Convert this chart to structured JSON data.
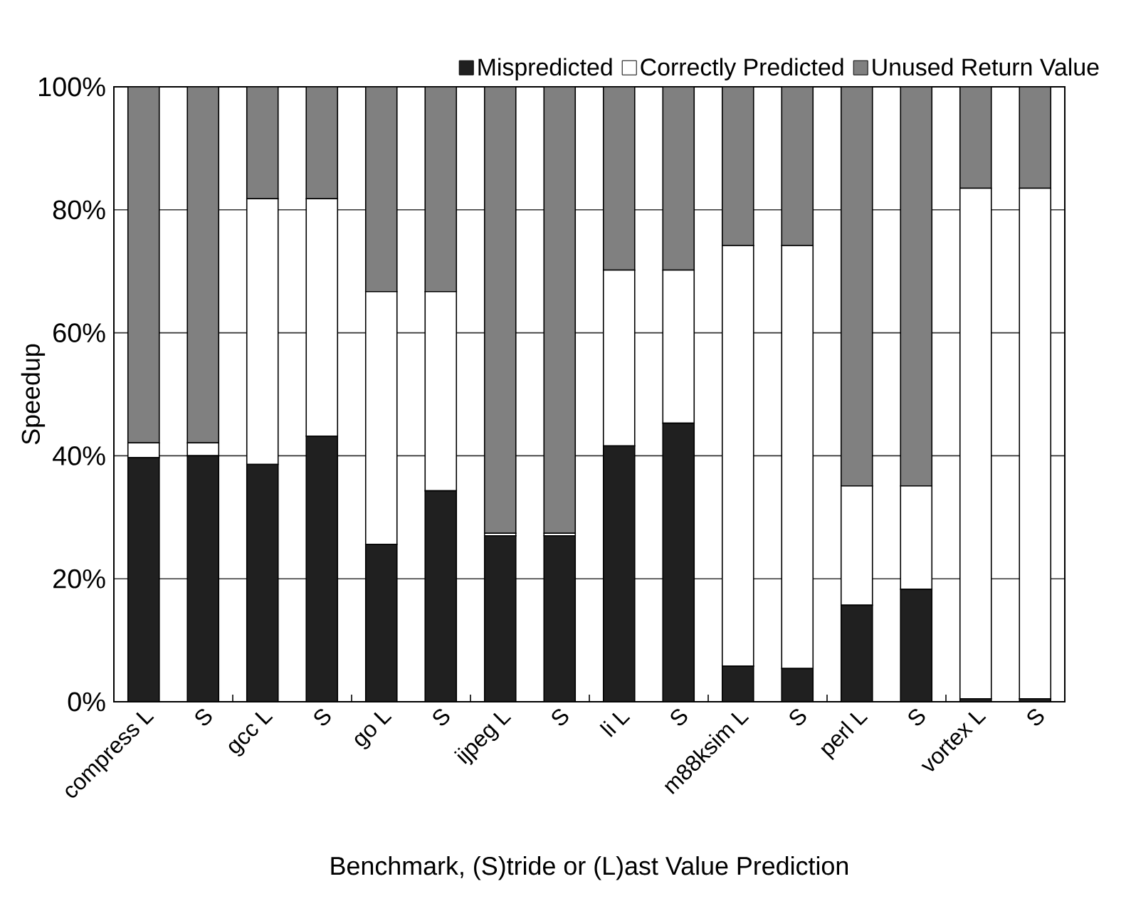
{
  "chart_data": {
    "type": "bar",
    "stacked": true,
    "xlabel": "Benchmark, (S)tride or (L)ast Value Prediction",
    "ylabel": "Speedup",
    "categories": [
      "compress L",
      "S",
      "gcc L",
      "S",
      "go L",
      "S",
      "ijpeg L",
      "S",
      "li L",
      "S",
      "m88ksim L",
      "S",
      "perl L",
      "S",
      "vortex L",
      "S"
    ],
    "series": [
      {
        "name": "Mispredicted",
        "color": "#202020",
        "values": [
          39.7,
          40.0,
          38.6,
          43.2,
          25.6,
          34.3,
          27.0,
          27.0,
          41.6,
          45.3,
          5.8,
          5.4,
          15.7,
          18.3,
          0.5,
          0.5
        ]
      },
      {
        "name": "Correctly Predicted",
        "color": "#ffffff",
        "values": [
          2.4,
          2.1,
          43.2,
          38.6,
          41.1,
          32.4,
          0.4,
          0.4,
          28.6,
          24.9,
          68.4,
          68.8,
          19.4,
          16.8,
          83.0,
          83.0
        ]
      },
      {
        "name": "Unused Return Value",
        "color": "#808080",
        "values": [
          57.9,
          57.9,
          18.2,
          18.2,
          33.3,
          33.3,
          72.6,
          72.6,
          29.8,
          29.8,
          25.8,
          25.8,
          64.9,
          64.9,
          16.5,
          16.5
        ]
      }
    ],
    "ylim": [
      0,
      100
    ],
    "yticks": [
      {
        "value": 0,
        "label": "0%"
      },
      {
        "value": 20,
        "label": "20%"
      },
      {
        "value": 40,
        "label": "40%"
      },
      {
        "value": 60,
        "label": "60%"
      },
      {
        "value": 80,
        "label": "80%"
      },
      {
        "value": 100,
        "label": "100%"
      }
    ],
    "grid": "y",
    "legend": "top"
  }
}
